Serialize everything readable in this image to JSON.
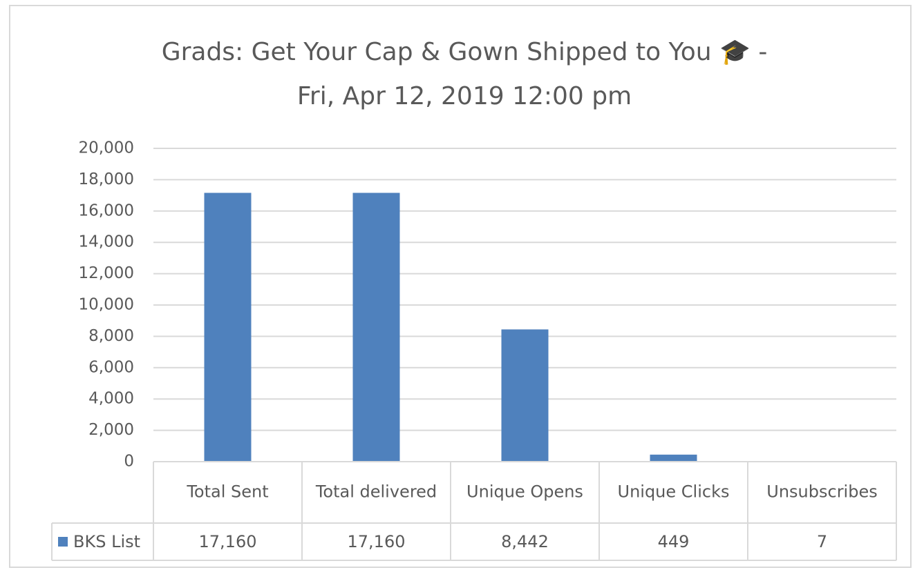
{
  "chart_data": {
    "type": "bar",
    "title": [
      "Grads: Get Your Cap & Gown Shipped to You 🎓 -",
      "Fri, Apr 12, 2019 12:00 pm"
    ],
    "categories": [
      "Total Sent",
      "Total delivered",
      "Unique Opens",
      "Unique Clicks",
      "Unsubscribes"
    ],
    "series": [
      {
        "name": "BKS List",
        "color": "#4f81bd",
        "values": [
          17160,
          17160,
          8442,
          449,
          7
        ],
        "value_labels": [
          "17,160",
          "17,160",
          "8,442",
          "449",
          "7"
        ]
      }
    ],
    "ylim": [
      0,
      20000
    ],
    "yticks": [
      0,
      {
        "value": 2000,
        "label": "2,000"
      },
      {
        "value": 4000,
        "label": "4,000"
      },
      {
        "value": 6000,
        "label": "6,000"
      },
      {
        "value": 8000,
        "label": "8,000"
      },
      {
        "value": 10000,
        "label": "10,000"
      },
      {
        "value": 12000,
        "label": "12,000"
      },
      {
        "value": 14000,
        "label": "14,000"
      },
      {
        "value": 16000,
        "label": "16,000"
      },
      {
        "value": 18000,
        "label": "18,000"
      },
      {
        "value": 20000,
        "label": "20,000"
      }
    ],
    "grid": true,
    "data_table": true
  }
}
